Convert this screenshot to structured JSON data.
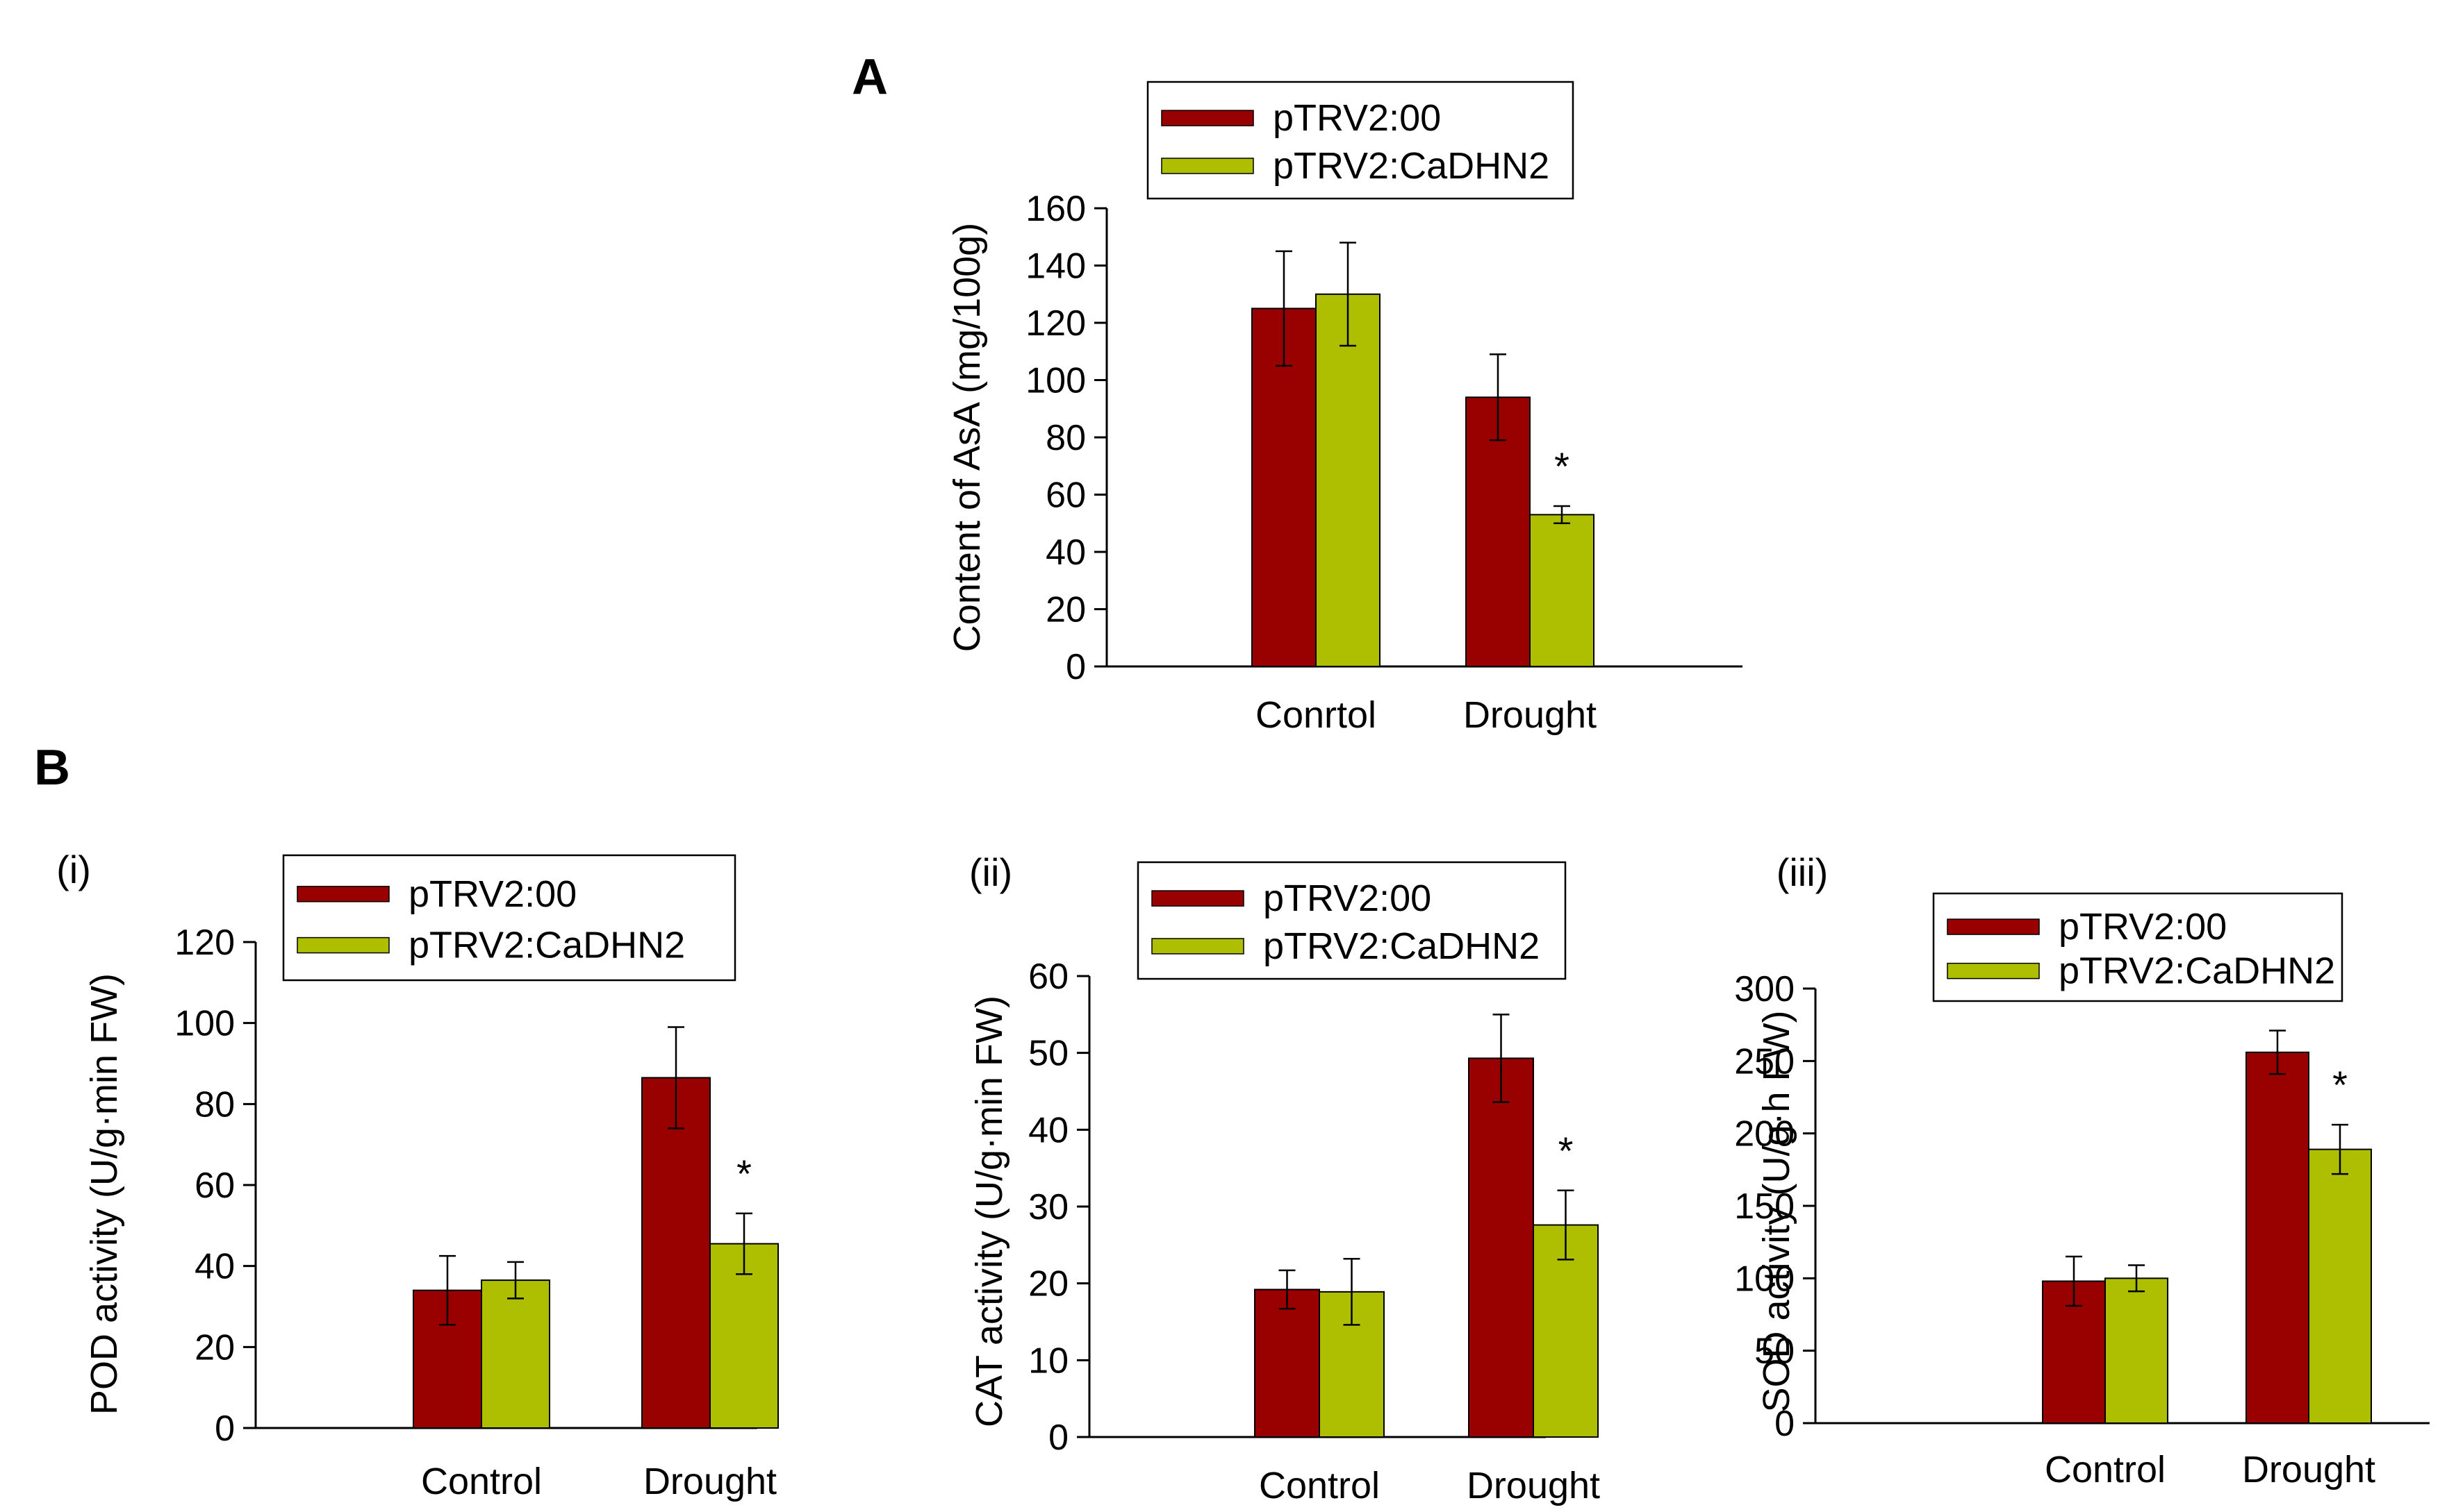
{
  "figure": {
    "panel_a_letter": "A",
    "panel_b_letter": "B",
    "colors": {
      "series1": "#990000",
      "series2": "#adbf00"
    }
  },
  "chart_data": [
    {
      "type": "bar",
      "panel": "A",
      "sublabel": "",
      "title": "",
      "xlabel": "",
      "ylabel": "Content of AsA (mg/100g)",
      "ylim": [
        0,
        160
      ],
      "yticks": [
        0,
        20,
        40,
        60,
        80,
        100,
        120,
        140,
        160
      ],
      "categories": [
        "Conrtol",
        "Drought"
      ],
      "legend": "top",
      "series": [
        {
          "name": "pTRV2:00",
          "color": "#990000",
          "values": [
            125,
            94
          ],
          "errors": [
            20,
            15
          ]
        },
        {
          "name": "pTRV2:CaDHN2",
          "color": "#adbf00",
          "values": [
            130,
            53
          ],
          "errors": [
            18,
            3
          ]
        }
      ],
      "annotations": [
        {
          "category": 1,
          "series": 1,
          "text": "*"
        }
      ]
    },
    {
      "type": "bar",
      "panel": "B",
      "sublabel": "(i)",
      "title": "",
      "xlabel": "",
      "ylabel": "POD activity (U/g·min FW)",
      "ylim": [
        0,
        120
      ],
      "yticks": [
        0,
        20,
        40,
        60,
        80,
        100,
        120
      ],
      "categories": [
        "Control",
        "Drought"
      ],
      "legend": "top",
      "series": [
        {
          "name": "pTRV2:00",
          "color": "#990000",
          "values": [
            34,
            86.5
          ],
          "errors": [
            8.5,
            12.5
          ]
        },
        {
          "name": "pTRV2:CaDHN2",
          "color": "#adbf00",
          "values": [
            36.5,
            45.5
          ],
          "errors": [
            4.5,
            7.5
          ]
        }
      ],
      "annotations": [
        {
          "category": 1,
          "series": 1,
          "text": "*"
        }
      ]
    },
    {
      "type": "bar",
      "panel": "B",
      "sublabel": "(ii)",
      "title": "",
      "xlabel": "",
      "ylabel": "CAT activity (U/g·min FW)",
      "ylim": [
        0,
        60
      ],
      "yticks": [
        0,
        10,
        20,
        30,
        40,
        50,
        60
      ],
      "categories": [
        "Control",
        "Drought"
      ],
      "legend": "top",
      "series": [
        {
          "name": "pTRV2:00",
          "color": "#990000",
          "values": [
            19.2,
            49.3
          ],
          "errors": [
            2.5,
            5.7
          ]
        },
        {
          "name": "pTRV2:CaDHN2",
          "color": "#adbf00",
          "values": [
            18.9,
            27.6
          ],
          "errors": [
            4.3,
            4.5
          ]
        }
      ],
      "annotations": [
        {
          "category": 1,
          "series": 1,
          "text": "*"
        }
      ]
    },
    {
      "type": "bar",
      "panel": "B",
      "sublabel": "(iii)",
      "title": "",
      "xlabel": "",
      "ylabel": "SOD activity (U/g·h FW)",
      "ylim": [
        0,
        300
      ],
      "yticks": [
        0,
        50,
        100,
        150,
        200,
        250,
        300
      ],
      "categories": [
        "Control",
        "Drought"
      ],
      "legend": "top",
      "series": [
        {
          "name": "pTRV2:00",
          "color": "#990000",
          "values": [
            98,
            256
          ],
          "errors": [
            17,
            15
          ]
        },
        {
          "name": "pTRV2:CaDHN2",
          "color": "#adbf00",
          "values": [
            100,
            189
          ],
          "errors": [
            9,
            17
          ]
        }
      ],
      "annotations": [
        {
          "category": 1,
          "series": 1,
          "text": "*"
        }
      ]
    }
  ]
}
